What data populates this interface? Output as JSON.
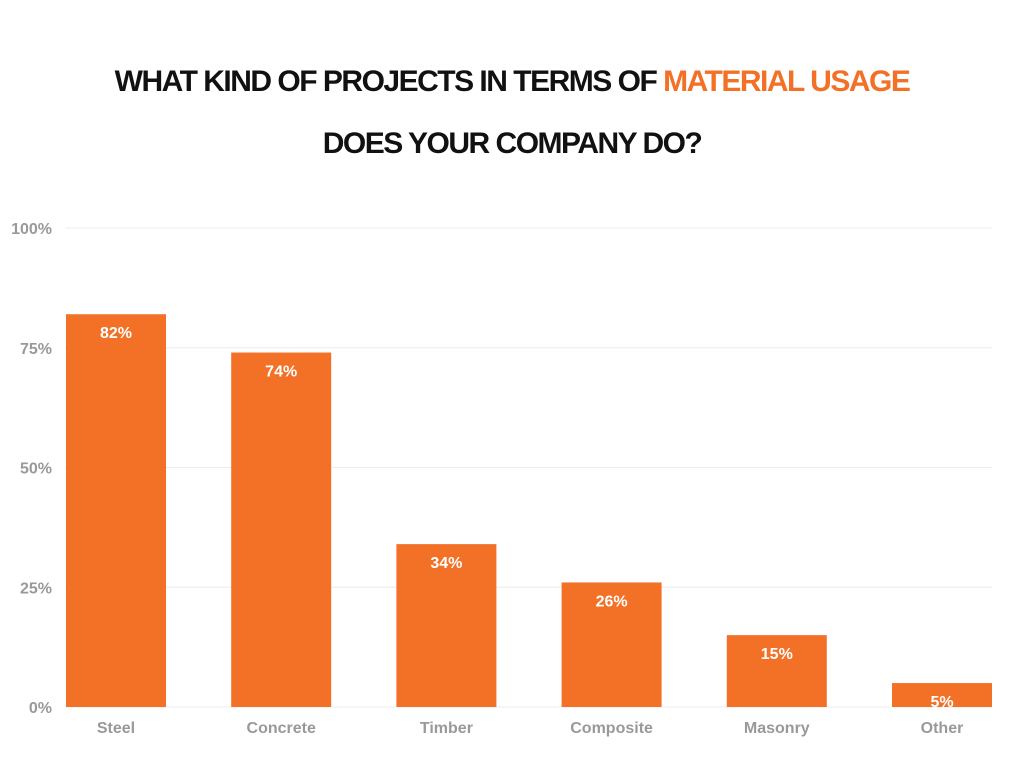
{
  "chart_data": {
    "type": "bar",
    "title_parts": {
      "line1_prefix": "WHAT KIND OF PROJECTS IN TERMS OF ",
      "line1_highlight": "MATERIAL USAGE",
      "line2": "DOES YOUR COMPANY DO?"
    },
    "categories": [
      "Steel",
      "Concrete",
      "Timber",
      "Composite",
      "Masonry",
      "Other"
    ],
    "values": [
      82,
      74,
      34,
      26,
      15,
      5
    ],
    "data_labels": [
      "82%",
      "74%",
      "34%",
      "26%",
      "15%",
      "5%"
    ],
    "ylim": [
      0,
      100
    ],
    "yticks": [
      0,
      25,
      50,
      75,
      100
    ],
    "ytick_labels": [
      "0%",
      "25%",
      "50%",
      "75%",
      "100%"
    ],
    "xlabel": "",
    "ylabel": "",
    "grid": true,
    "colors": {
      "bar": "#f37027",
      "highlight": "#f37027",
      "axis_text": "#999999",
      "grid": "#ececec",
      "label": "#ffffff"
    }
  }
}
